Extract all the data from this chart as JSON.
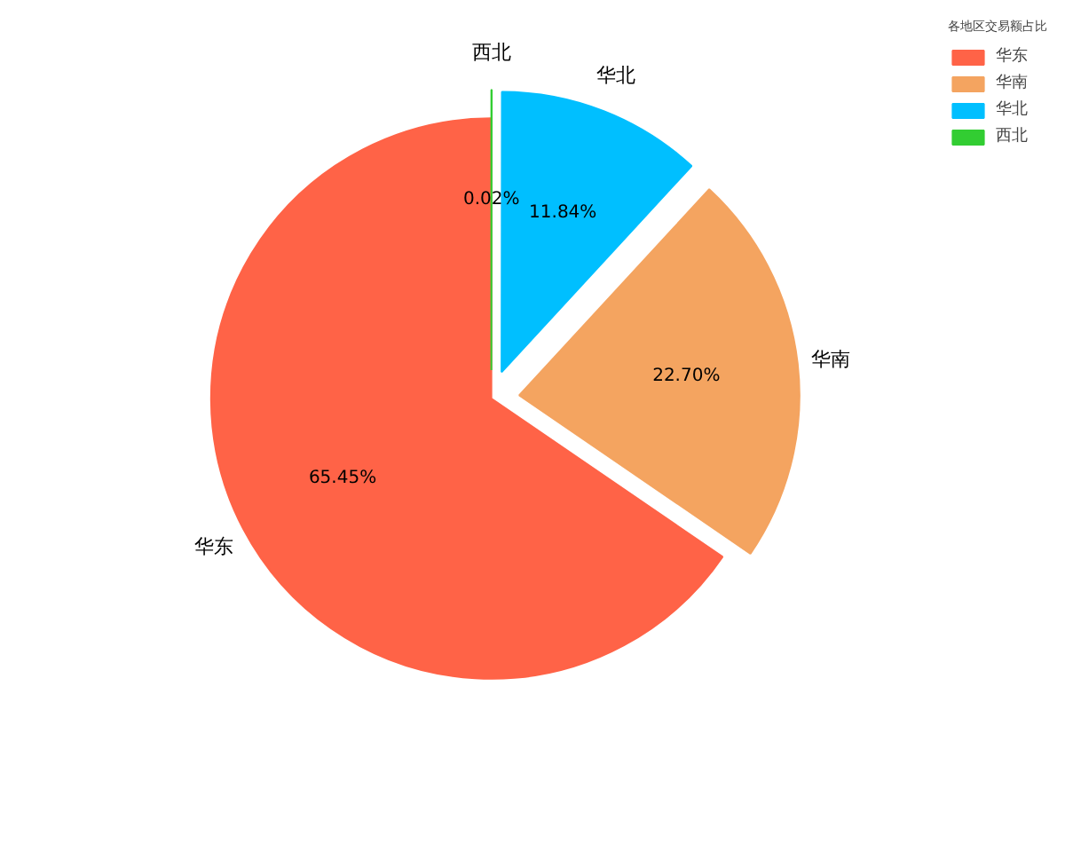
{
  "chart_data": {
    "type": "pie",
    "legend_title": "各地区交易额占比",
    "legend": "top right",
    "categories": [
      "华东",
      "华南",
      "华北",
      "西北"
    ],
    "values": [
      65.45,
      22.7,
      11.84,
      0.02
    ],
    "value_labels": [
      "65.45%",
      "22.70%",
      "11.84%",
      "0.02%"
    ],
    "colors": [
      "#ff6347",
      "#f4a460",
      "#00bfff",
      "#32cd32"
    ]
  }
}
